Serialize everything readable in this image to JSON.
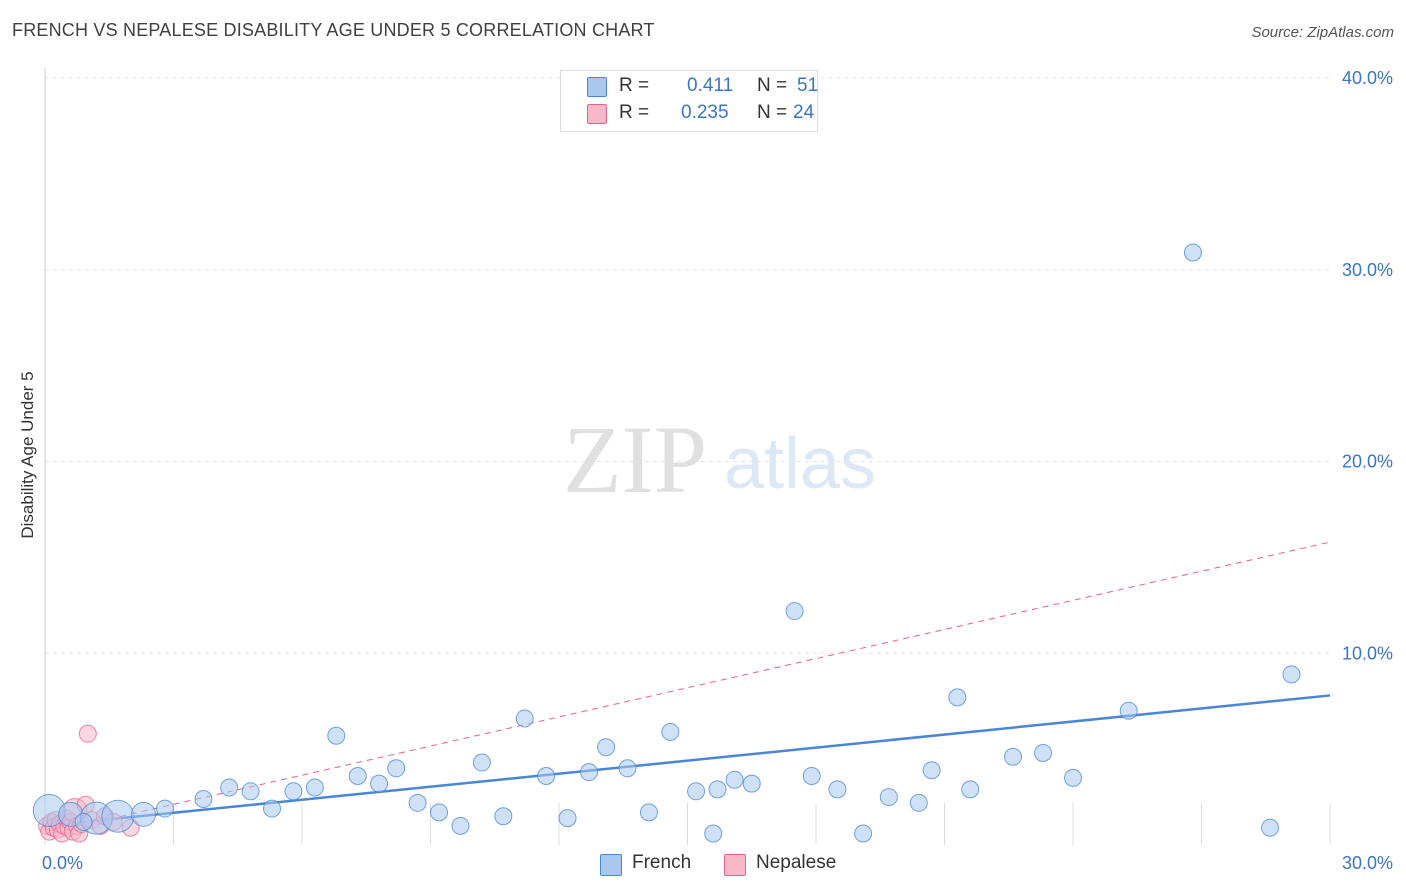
{
  "header": {
    "title": "FRENCH VS NEPALESE DISABILITY AGE UNDER 5 CORRELATION CHART",
    "source": "Source: ZipAtlas.com"
  },
  "watermark": {
    "zip": "ZIP",
    "atlas": "atlas"
  },
  "legend": {
    "rows": [
      {
        "r_label": "R =",
        "r_value": "0.411",
        "n_label": "N =",
        "n_value": "51",
        "color": "#a8c8f0"
      },
      {
        "r_label": "R =",
        "r_value": "0.235",
        "n_label": "N =",
        "n_value": "24",
        "color": "#f8b8c8"
      }
    ],
    "series": [
      {
        "name": "French",
        "color": "#a8c8f0"
      },
      {
        "name": "Nepalese",
        "color": "#f8b8c8"
      }
    ]
  },
  "chart_data": {
    "type": "scatter",
    "title": "FRENCH VS NEPALESE DISABILITY AGE UNDER 5 CORRELATION CHART",
    "xlabel": "",
    "ylabel": "Disability Age Under 5",
    "xlim": [
      0,
      30
    ],
    "ylim": [
      0,
      40
    ],
    "x_tick_labels": [
      "0.0%",
      "30.0%"
    ],
    "y_ticks": [
      10,
      20,
      30,
      40
    ],
    "y_tick_labels": [
      "10.0%",
      "20.0%",
      "30.0%",
      "40.0%"
    ],
    "grid": true,
    "series": [
      {
        "name": "French",
        "color": "#4a86d4",
        "fill": "#a8c8f0",
        "trendline": {
          "x": [
            0,
            30
          ],
          "y": [
            1.0,
            7.8
          ],
          "style": "solid"
        },
        "points": [
          {
            "x": 0.1,
            "y": 1.8,
            "s": 3
          },
          {
            "x": 0.6,
            "y": 1.6,
            "s": 2
          },
          {
            "x": 1.2,
            "y": 1.4,
            "s": 3
          },
          {
            "x": 1.7,
            "y": 1.5,
            "s": 3
          },
          {
            "x": 2.3,
            "y": 1.6,
            "s": 2
          },
          {
            "x": 2.8,
            "y": 1.9,
            "s": 1
          },
          {
            "x": 3.7,
            "y": 2.4,
            "s": 1
          },
          {
            "x": 4.3,
            "y": 3.0,
            "s": 1
          },
          {
            "x": 4.8,
            "y": 2.8,
            "s": 1
          },
          {
            "x": 5.3,
            "y": 1.9,
            "s": 1
          },
          {
            "x": 5.8,
            "y": 2.8,
            "s": 1
          },
          {
            "x": 6.3,
            "y": 3.0,
            "s": 1
          },
          {
            "x": 6.8,
            "y": 5.7,
            "s": 1
          },
          {
            "x": 7.3,
            "y": 3.6,
            "s": 1
          },
          {
            "x": 7.8,
            "y": 3.2,
            "s": 1
          },
          {
            "x": 8.2,
            "y": 4.0,
            "s": 1
          },
          {
            "x": 8.7,
            "y": 2.2,
            "s": 1
          },
          {
            "x": 9.2,
            "y": 1.7,
            "s": 1
          },
          {
            "x": 9.7,
            "y": 1.0,
            "s": 1
          },
          {
            "x": 10.2,
            "y": 4.3,
            "s": 1
          },
          {
            "x": 10.7,
            "y": 1.5,
            "s": 1
          },
          {
            "x": 11.2,
            "y": 6.6,
            "s": 1
          },
          {
            "x": 11.7,
            "y": 3.6,
            "s": 1
          },
          {
            "x": 12.2,
            "y": 1.4,
            "s": 1
          },
          {
            "x": 12.7,
            "y": 3.8,
            "s": 1
          },
          {
            "x": 13.1,
            "y": 5.1,
            "s": 1
          },
          {
            "x": 13.6,
            "y": 4.0,
            "s": 1
          },
          {
            "x": 14.1,
            "y": 1.7,
            "s": 1
          },
          {
            "x": 14.6,
            "y": 5.9,
            "s": 1
          },
          {
            "x": 15.2,
            "y": 2.8,
            "s": 1
          },
          {
            "x": 15.6,
            "y": 0.6,
            "s": 1
          },
          {
            "x": 15.7,
            "y": 2.9,
            "s": 1
          },
          {
            "x": 16.1,
            "y": 3.4,
            "s": 1
          },
          {
            "x": 16.5,
            "y": 3.2,
            "s": 1
          },
          {
            "x": 17.5,
            "y": 12.2,
            "s": 1
          },
          {
            "x": 17.9,
            "y": 3.6,
            "s": 1
          },
          {
            "x": 18.5,
            "y": 2.9,
            "s": 1
          },
          {
            "x": 19.1,
            "y": 0.6,
            "s": 1
          },
          {
            "x": 19.7,
            "y": 2.5,
            "s": 1
          },
          {
            "x": 20.4,
            "y": 2.2,
            "s": 1
          },
          {
            "x": 20.7,
            "y": 3.9,
            "s": 1
          },
          {
            "x": 21.3,
            "y": 7.7,
            "s": 1
          },
          {
            "x": 21.6,
            "y": 2.9,
            "s": 1
          },
          {
            "x": 22.6,
            "y": 4.6,
            "s": 1
          },
          {
            "x": 23.3,
            "y": 4.8,
            "s": 1
          },
          {
            "x": 24.0,
            "y": 3.5,
            "s": 1
          },
          {
            "x": 25.3,
            "y": 7.0,
            "s": 1
          },
          {
            "x": 26.8,
            "y": 30.9,
            "s": 1
          },
          {
            "x": 28.6,
            "y": 0.9,
            "s": 1
          },
          {
            "x": 29.1,
            "y": 8.9,
            "s": 1
          },
          {
            "x": 0.9,
            "y": 1.2,
            "s": 1
          }
        ]
      },
      {
        "name": "Nepalese",
        "color": "#e8608c",
        "fill": "#f8b8c8",
        "trendline": {
          "x": [
            0,
            30
          ],
          "y": [
            0.6,
            15.8
          ],
          "style": "dashed"
        },
        "points": [
          {
            "x": 0.05,
            "y": 1.0,
            "s": 1
          },
          {
            "x": 0.1,
            "y": 0.7,
            "s": 1
          },
          {
            "x": 0.15,
            "y": 1.2,
            "s": 1
          },
          {
            "x": 0.2,
            "y": 0.9,
            "s": 1
          },
          {
            "x": 0.25,
            "y": 1.3,
            "s": 1
          },
          {
            "x": 0.3,
            "y": 0.8,
            "s": 1
          },
          {
            "x": 0.35,
            "y": 1.1,
            "s": 1
          },
          {
            "x": 0.4,
            "y": 0.6,
            "s": 1
          },
          {
            "x": 0.45,
            "y": 1.0,
            "s": 1
          },
          {
            "x": 0.5,
            "y": 1.4,
            "s": 1
          },
          {
            "x": 0.55,
            "y": 0.9,
            "s": 1
          },
          {
            "x": 0.6,
            "y": 1.2,
            "s": 1
          },
          {
            "x": 0.65,
            "y": 0.7,
            "s": 1
          },
          {
            "x": 0.7,
            "y": 1.8,
            "s": 2
          },
          {
            "x": 0.75,
            "y": 1.0,
            "s": 1
          },
          {
            "x": 0.8,
            "y": 0.6,
            "s": 1
          },
          {
            "x": 0.85,
            "y": 1.1,
            "s": 1
          },
          {
            "x": 0.95,
            "y": 2.1,
            "s": 1
          },
          {
            "x": 1.0,
            "y": 5.8,
            "s": 1
          },
          {
            "x": 1.1,
            "y": 1.3,
            "s": 1
          },
          {
            "x": 1.3,
            "y": 1.0,
            "s": 1
          },
          {
            "x": 1.4,
            "y": 1.5,
            "s": 1
          },
          {
            "x": 1.6,
            "y": 1.2,
            "s": 1
          },
          {
            "x": 2.0,
            "y": 0.9,
            "s": 1
          }
        ]
      }
    ]
  }
}
